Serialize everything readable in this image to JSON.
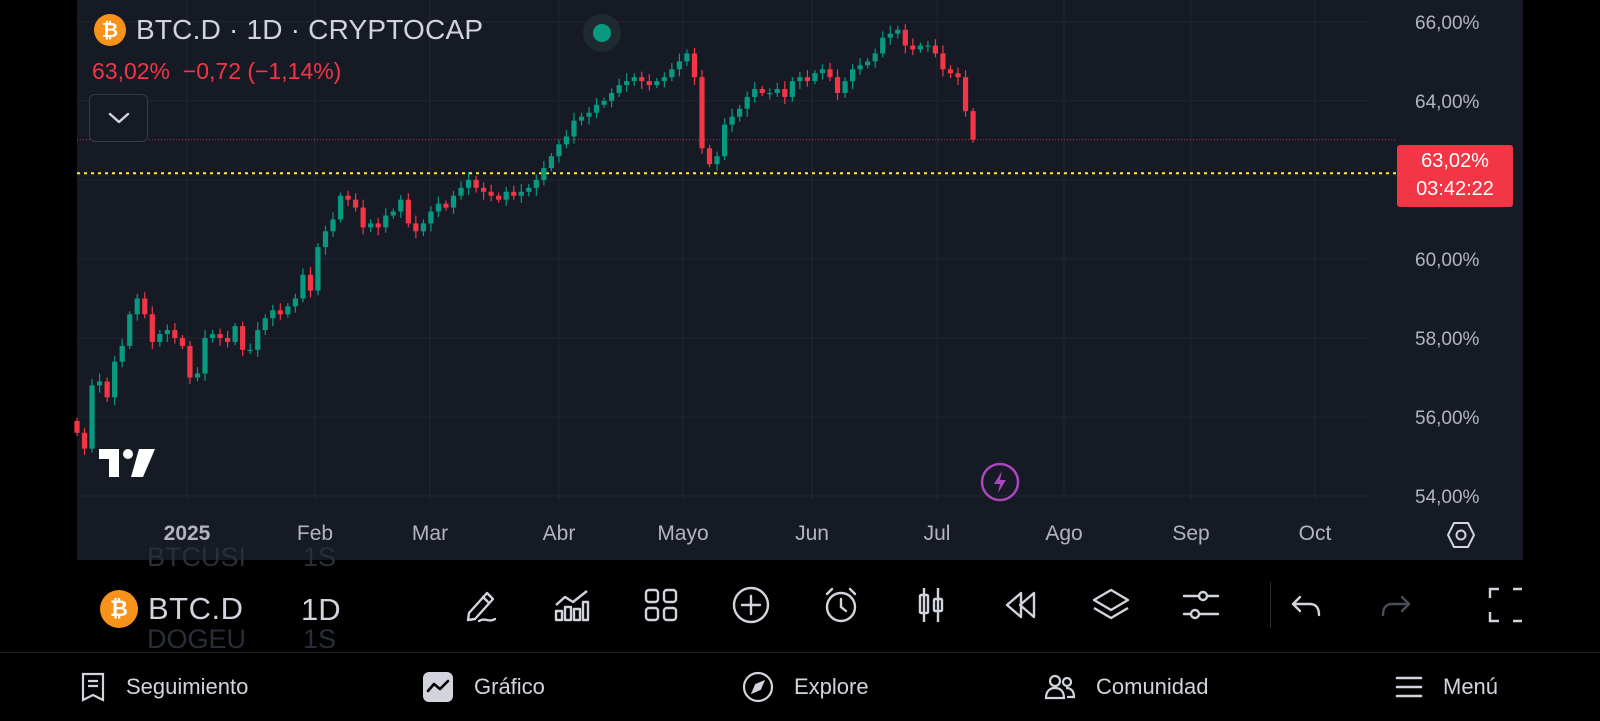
{
  "header": {
    "symbol_title": "BTC.D · 1D · CRYPTOCAP",
    "price_line": "63,02%  −0,72 (−1,14%)",
    "logo_glyph": "₿"
  },
  "price_label": {
    "value": "63,02%",
    "countdown": "03:42:22"
  },
  "colors": {
    "up": "#089981",
    "down": "#f23645",
    "background": "#161a25",
    "grid": "#232733",
    "horizontal_line": "#ffeb3b",
    "brand_btc": "#f7931a"
  },
  "chart_data": {
    "type": "candlestick",
    "title": "BTC.D · 1D · CRYPTOCAP",
    "y_ticks": [
      "66,00%",
      "64,00%",
      "62,00%",
      "60,00%",
      "58,00%",
      "56,00%",
      "54,00%"
    ],
    "x_ticks": [
      "2025",
      "Feb",
      "Mar",
      "Abr",
      "Mayo",
      "Jun",
      "Jul",
      "Ago",
      "Sep",
      "Oct"
    ],
    "ylim": [
      53.9,
      66.3
    ],
    "last_close": 63.02,
    "horizontal_line": 62.17,
    "grid": true,
    "close_series": [
      55.6,
      55.2,
      56.8,
      56.9,
      56.5,
      57.4,
      57.8,
      58.6,
      59.0,
      58.6,
      57.9,
      58.1,
      58.2,
      58.0,
      57.8,
      57.0,
      57.1,
      58.0,
      58.1,
      58.0,
      57.9,
      58.3,
      57.7,
      57.7,
      58.2,
      58.5,
      58.7,
      58.6,
      58.8,
      59.0,
      59.6,
      59.2,
      60.3,
      60.7,
      61.0,
      61.6,
      61.5,
      61.3,
      60.8,
      60.9,
      60.8,
      61.1,
      61.2,
      61.5,
      60.9,
      60.7,
      60.9,
      61.2,
      61.4,
      61.3,
      61.6,
      61.8,
      62.0,
      61.8,
      61.7,
      61.6,
      61.5,
      61.7,
      61.6,
      61.7,
      61.8,
      62.0,
      62.3,
      62.6,
      62.9,
      63.1,
      63.5,
      63.6,
      63.7,
      63.9,
      64.0,
      64.2,
      64.4,
      64.5,
      64.6,
      64.5,
      64.4,
      64.5,
      64.6,
      64.8,
      65.0,
      65.2,
      64.6,
      62.8,
      62.4,
      62.6,
      63.4,
      63.6,
      63.8,
      64.1,
      64.3,
      64.2,
      64.2,
      64.3,
      64.1,
      64.5,
      64.6,
      64.5,
      64.7,
      64.8,
      64.6,
      64.2,
      64.5,
      64.8,
      64.9,
      65.0,
      65.2,
      65.6,
      65.7,
      65.8,
      65.4,
      65.3,
      65.4,
      65.4,
      65.2,
      64.8,
      64.7,
      64.6,
      63.74,
      63.02
    ]
  },
  "toolbar": {
    "symbol": "BTC.D",
    "interval": "1D",
    "ghost_top": [
      "BTCUSI",
      "1S"
    ],
    "ghost_bottom": [
      "DOGEU",
      "1S"
    ],
    "icons": [
      "pencil-icon",
      "indicators-icon",
      "layouts-icon",
      "add-icon",
      "alarm-icon",
      "candles-icon",
      "replay-icon",
      "layers-icon",
      "settings-sliders-icon",
      "undo-icon",
      "redo-icon",
      "fullscreen-icon"
    ]
  },
  "nav": [
    {
      "label": "Seguimiento",
      "icon": "watchlist-icon"
    },
    {
      "label": "Gráfico",
      "icon": "chart-icon"
    },
    {
      "label": "Explore",
      "icon": "compass-icon"
    },
    {
      "label": "Comunidad",
      "icon": "community-icon"
    },
    {
      "label": "Menú",
      "icon": "hamburger-icon"
    }
  ]
}
